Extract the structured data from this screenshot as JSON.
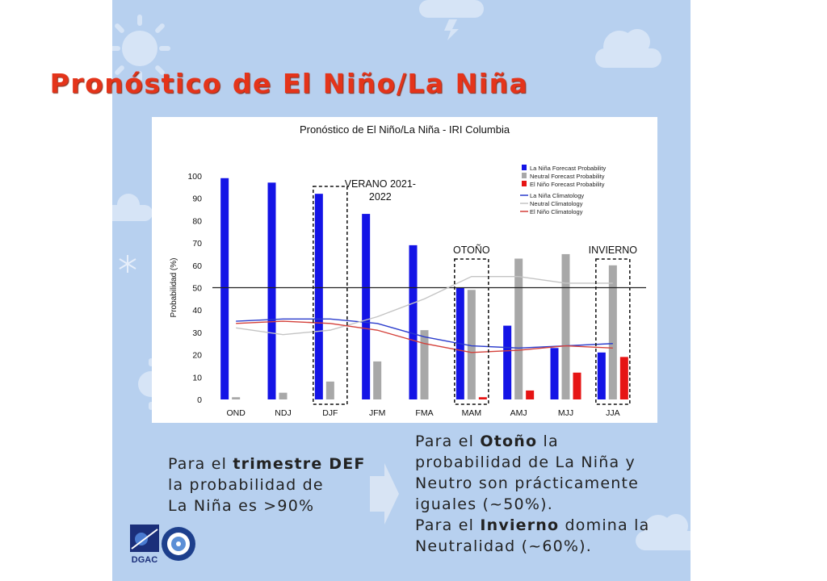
{
  "header": {
    "title": "Pronóstico de El Niño/La Niña"
  },
  "colors": {
    "panel_bg": "#b7d0ef",
    "title": "#e4341a",
    "la_nina": "#1414e6",
    "neutral": "#a8a8a8",
    "el_nino": "#e61414"
  },
  "chart_data": {
    "type": "bar",
    "title": "Pronóstico de El Niño/La Niña - IRI Columbia",
    "ylabel": "Probabilidad (%)",
    "xlabel": "",
    "ylim": [
      0,
      100
    ],
    "yticks": [
      0,
      10,
      20,
      30,
      40,
      50,
      60,
      70,
      80,
      90,
      100
    ],
    "reference_line": 50,
    "categories": [
      "OND",
      "NDJ",
      "DJF",
      "JFM",
      "FMA",
      "MAM",
      "AMJ",
      "MJJ",
      "JJA"
    ],
    "series": [
      {
        "name": "La Niña Forecast Probability",
        "color": "#1414e6",
        "values": [
          99,
          97,
          92,
          83,
          69,
          50,
          33,
          23,
          21
        ]
      },
      {
        "name": "Neutral Forecast Probability",
        "color": "#a8a8a8",
        "values": [
          1,
          3,
          8,
          17,
          31,
          49,
          63,
          65,
          60
        ]
      },
      {
        "name": "El Niño Forecast Probability",
        "color": "#e61414",
        "values": [
          0,
          0,
          0,
          0,
          0,
          1,
          4,
          12,
          19
        ]
      }
    ],
    "lines": [
      {
        "name": "La Niña Climatology",
        "color": "#2b3ccc",
        "values": [
          35,
          36,
          36,
          34,
          28,
          24,
          23,
          24,
          25
        ]
      },
      {
        "name": "Neutral Climatology",
        "color": "#c4c4c4",
        "values": [
          32,
          29,
          31,
          37,
          45,
          55,
          55,
          52,
          52
        ]
      },
      {
        "name": "El Niño Climatology",
        "color": "#d4403a",
        "values": [
          34,
          35,
          34,
          31,
          25,
          21,
          22,
          24,
          23
        ]
      }
    ],
    "annotations": [
      {
        "text": "VERANO 2021-2022",
        "line1": "VERANO 2021-",
        "line2": "2022",
        "category": "DJF"
      },
      {
        "text": "OTOÑO",
        "category": "MAM"
      },
      {
        "text": "INVIERNO",
        "category": "JJA"
      }
    ],
    "legend_position": "top-right"
  },
  "notes": {
    "left": {
      "pre": "Para el ",
      "bold": "trimestre DEF",
      "line2": "la probabilidad de",
      "line3": "La Niña es >90%"
    },
    "right": {
      "l1_pre": "Para el ",
      "l1_bold": "Otoño",
      "l1_post": " la",
      "l2": "probabilidad de La Niña y",
      "l3": "Neutro son prácticamente",
      "l4": "iguales (~50%).",
      "l5_pre": "Para el ",
      "l5_bold": "Invierno",
      "l5_post": " domina la",
      "l6": "Neutralidad (~60%)."
    }
  },
  "logos": {
    "dgac_label": "DGAC"
  }
}
